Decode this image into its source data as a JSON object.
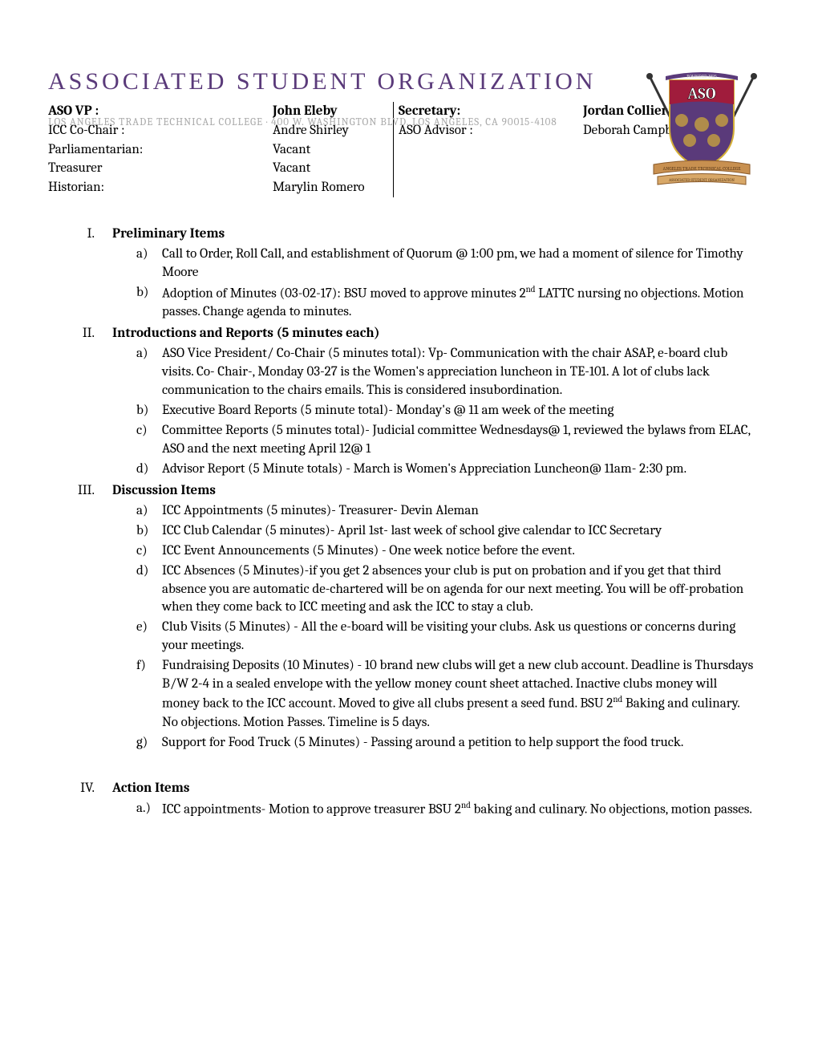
{
  "header": {
    "title": "ASSOCIATED STUDENT ORGANIZATION",
    "address": "LOS ANGELES TRADE TECHNICAL COLLEGE · 400 W. WASHINGTON BLVD. LOS ANGELES, CA 90015-4108",
    "title_color": "#5a3a7a",
    "address_color": "#aaaaaa"
  },
  "logo": {
    "shield_top_color": "#a01c3c",
    "shield_bottom_color": "#5a3a7a",
    "banner_color": "#8a5a2a",
    "text_top": "ASO",
    "banner_text": "ANGELES TRADE TECHNICAL COLLEGE",
    "sub_banner": "ASSOCIATED STUDENT ORGANIZATION"
  },
  "officers_left": [
    {
      "label": "ASO VP :",
      "name": "John Eleby",
      "bold": true
    },
    {
      "label": "ICC Co-Chair :",
      "name": "Andre Shirley",
      "bold": false
    },
    {
      "label": "Parliamentarian:",
      "name": "Vacant",
      "bold": false
    },
    {
      "label": "Treasurer",
      "name": "Vacant",
      "bold": false
    },
    {
      "label": "Historian:",
      "name": "Marylin Romero",
      "bold": false
    }
  ],
  "officers_right": [
    {
      "label": "Secretary:",
      "name": "Jordan Collier",
      "bold": true
    },
    {
      "label": "ASO Advisor :",
      "name": "Deborah Campbell",
      "bold": false
    }
  ],
  "sections": [
    {
      "roman": "I.",
      "title": "Preliminary Items",
      "items": [
        {
          "letter": "a)",
          "text": "Call to Order, Roll Call, and establishment of Quorum @ 1:00 pm, we had a moment of silence for Timothy Moore"
        },
        {
          "letter": "b)",
          "text": "Adoption of Minutes (03-02-17): BSU moved to approve minutes 2<sup>nd</sup> LATTC nursing no objections. Motion passes. Change agenda to minutes."
        }
      ]
    },
    {
      "roman": "II.",
      "title": "Introductions and Reports (5 minutes each)",
      "items": [
        {
          "letter": "a)",
          "text": "ASO Vice President/ Co-Chair (5 minutes total): Vp- Communication with the chair ASAP, e-board club visits. Co- Chair-, Monday 03-27 is the Women's appreciation luncheon in TE-101. A lot of clubs lack communication to the chairs emails. This is considered insubordination."
        },
        {
          "letter": "b)",
          "text": "Executive Board Reports (5 minute total)- Monday's @ 11 am week of the meeting"
        },
        {
          "letter": "c)",
          "text": "Committee Reports (5 minutes total)- Judicial committee Wednesdays@ 1, reviewed the bylaws from ELAC, ASO and the next meeting April 12@ 1"
        },
        {
          "letter": "d)",
          "text": "Advisor Report (5 Minute totals) - March is Women's Appreciation Luncheon@ 11am- 2:30 pm."
        }
      ]
    },
    {
      "roman": "III.",
      "title": "Discussion Items",
      "items": [
        {
          "letter": "a)",
          "text": "ICC Appointments (5 minutes)- Treasurer- Devin Aleman"
        },
        {
          "letter": "b)",
          "text": "ICC Club Calendar (5 minutes)- April 1st- last week of school give calendar to ICC Secretary"
        },
        {
          "letter": "c)",
          "text": "ICC Event Announcements (5 Minutes) - One week notice before the event."
        },
        {
          "letter": "d)",
          "text": "ICC Absences (5 Minutes)-if you get 2 absences your club is put on probation and if you get that third absence you are automatic de-chartered will be on agenda for our next meeting. You will be off-probation when they come back to ICC meeting and ask the ICC to stay a club."
        },
        {
          "letter": "e)",
          "text": "Club Visits (5 Minutes) - All the e-board will be visiting your clubs. Ask us questions or concerns during your meetings."
        },
        {
          "letter": "f)",
          "text": "Fundraising Deposits (10 Minutes) - 10 brand new clubs will get a new club account. Deadline is Thursdays B/W 2-4 in a sealed envelope with the yellow money count sheet attached. Inactive clubs money will money back to the ICC account. Moved to give all clubs present a seed fund. BSU 2<sup>nd</sup> Baking and culinary. No objections. Motion Passes. Timeline is 5 days."
        },
        {
          "letter": "g)",
          "text": "Support for Food Truck (5 Minutes) - Passing around a petition to help support the food truck."
        }
      ]
    },
    {
      "roman": "IV.",
      "title": "Action Items",
      "items": [
        {
          "letter": "a.)",
          "text": "ICC appointments- Motion to approve treasurer BSU 2<sup>nd</sup> baking and culinary. No objections, motion passes."
        }
      ],
      "pre_spacer": true
    }
  ]
}
